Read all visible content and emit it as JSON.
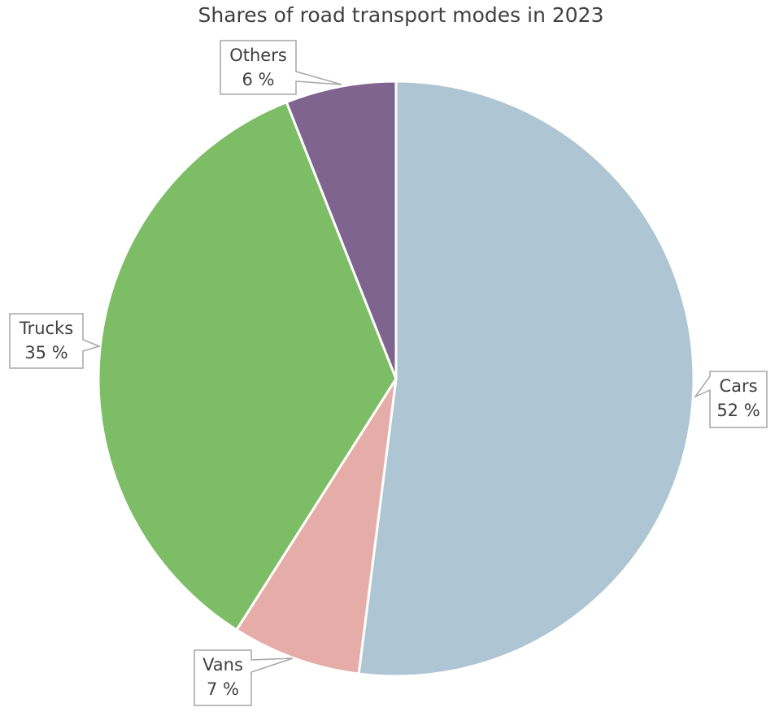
{
  "chart_data": {
    "type": "pie",
    "title": "Shares of road transport modes in 2023",
    "unit": "%",
    "start": "top",
    "direction": "clockwise",
    "slices": [
      {
        "label": "Cars",
        "value": 52,
        "display": "52 %",
        "color": "#aec6d3"
      },
      {
        "label": "Vans",
        "value": 7,
        "display": "7 %",
        "color": "#e6aca8"
      },
      {
        "label": "Trucks",
        "value": 35,
        "display": "35 %",
        "color": "#7cbd65"
      },
      {
        "label": "Others",
        "value": 6,
        "display": "6 %",
        "color": "#7e648f"
      }
    ],
    "legend": "none",
    "labels": "callouts"
  }
}
